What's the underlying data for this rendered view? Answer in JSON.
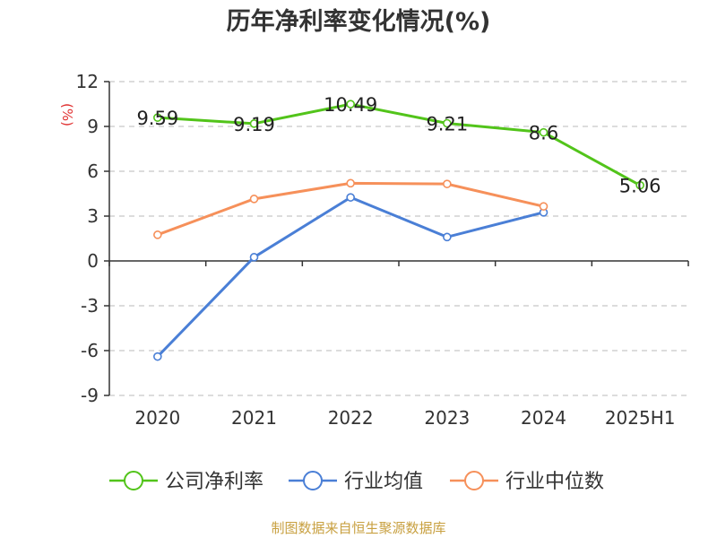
{
  "chart_data": {
    "type": "line",
    "title": "历年净利率变化情况(%)",
    "ylabel": "(%)",
    "categories": [
      "2020",
      "2021",
      "2022",
      "2023",
      "2024",
      "2025H1"
    ],
    "yticks": [
      "12",
      "9",
      "6",
      "3",
      "0",
      "-3",
      "-6",
      "-9"
    ],
    "ylim": [
      -9,
      12
    ],
    "grid": true,
    "legend_position": "bottom",
    "series": [
      {
        "name": "公司净利率",
        "color": "#52c41a",
        "values": [
          9.59,
          9.19,
          10.49,
          9.21,
          8.6,
          5.06
        ],
        "labels": [
          "9.59",
          "9.19",
          "10.49",
          "9.21",
          "8.6",
          "5.06"
        ]
      },
      {
        "name": "行业均值",
        "color": "#4a7fd6",
        "values": [
          -6.4,
          0.25,
          4.25,
          1.6,
          3.25,
          null
        ]
      },
      {
        "name": "行业中位数",
        "color": "#f6905a",
        "values": [
          1.75,
          4.15,
          5.2,
          5.15,
          3.65,
          null
        ]
      }
    ],
    "source": "制图数据来自恒生聚源数据库"
  }
}
